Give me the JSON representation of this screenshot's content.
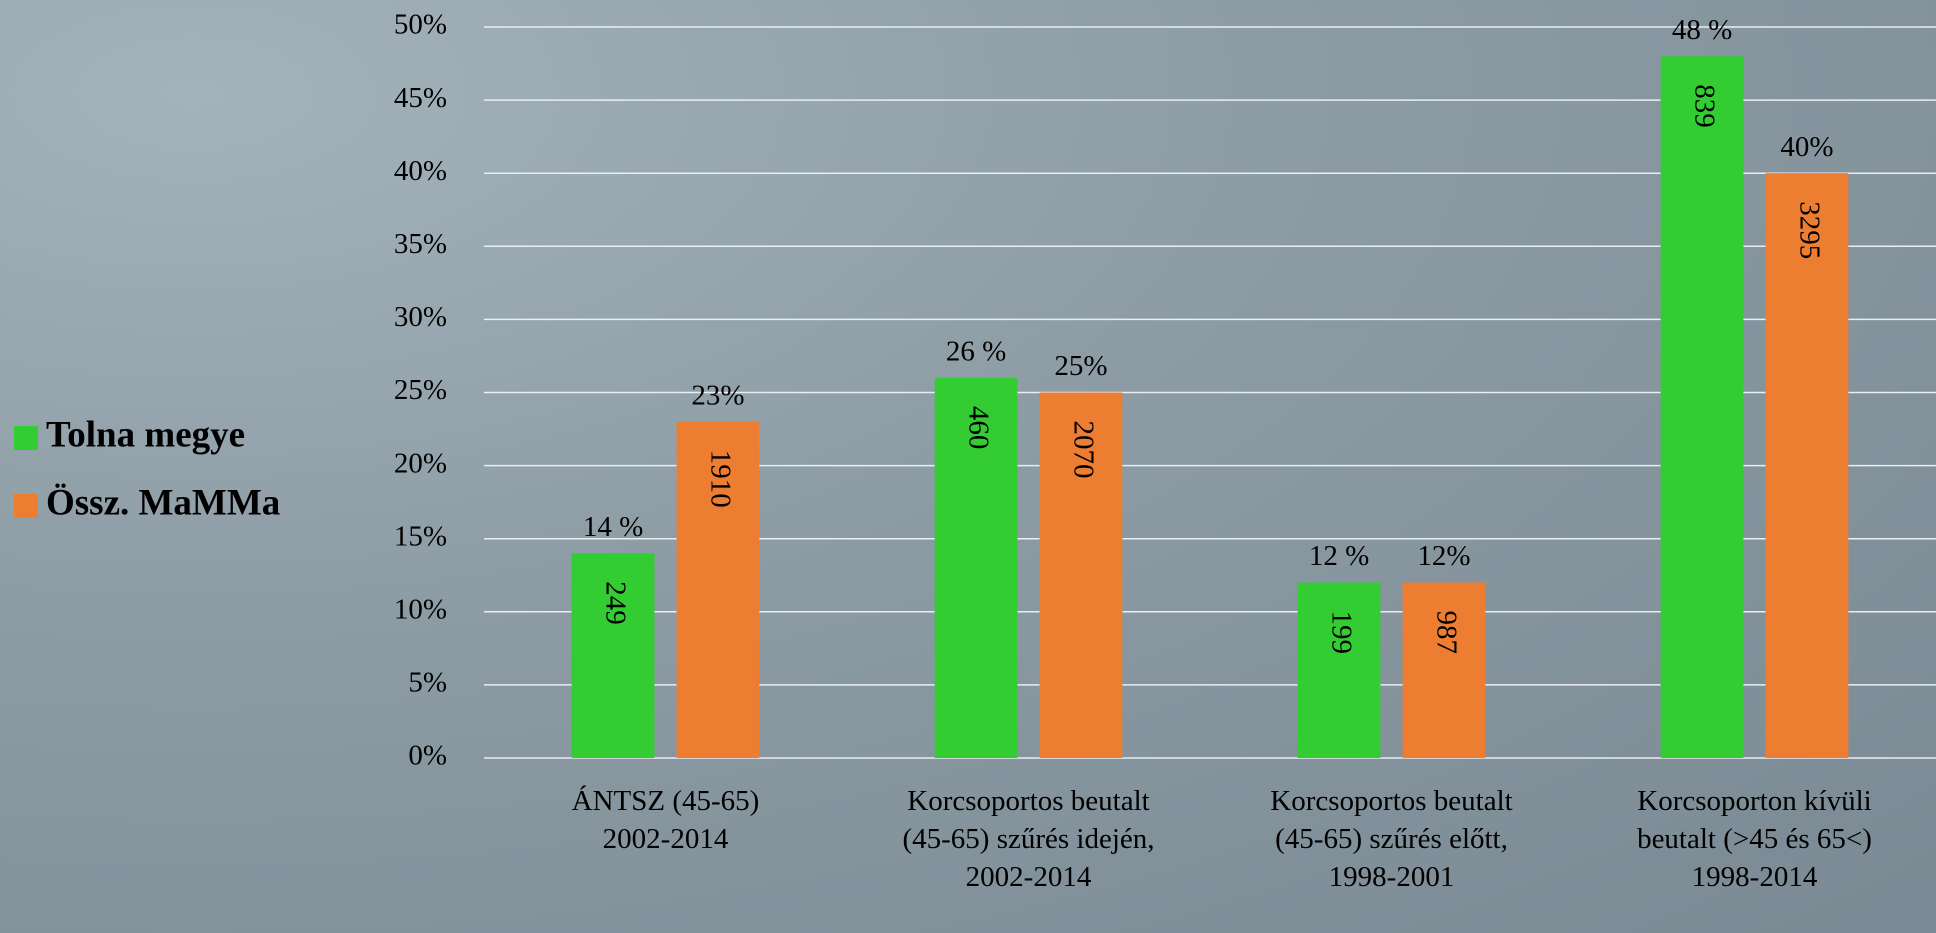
{
  "chart_data": {
    "type": "bar",
    "categories": [
      "ÁNTSZ (45-65)\n2002-2014",
      "Korcsoportos beutalt\n(45-65) szűrés idején,\n2002-2014",
      "Korcsoportos beutalt\n(45-65) szűrés előtt,\n1998-2001",
      "Korcsoporton kívüli\nbeutalt (>45 és 65<)\n1998-2014"
    ],
    "series": [
      {
        "name": "Tolna megye",
        "color": "#33cc33",
        "values": [
          14,
          26,
          12,
          48
        ],
        "value_labels": [
          "14 %",
          "26 %",
          "12 %",
          "48 %"
        ],
        "counts": [
          249,
          460,
          199,
          839
        ]
      },
      {
        "name": "Össz. MaMMa",
        "color": "#ed7d31",
        "values": [
          23,
          25,
          12,
          40
        ],
        "value_labels": [
          "23%",
          "25%",
          "12%",
          "40%"
        ],
        "counts": [
          1910,
          2070,
          987,
          3295
        ]
      }
    ],
    "ylim": [
      0,
      50
    ],
    "yticks": [
      {
        "value": 0,
        "label": "0%"
      },
      {
        "value": 5,
        "label": "5%"
      },
      {
        "value": 10,
        "label": "10%"
      },
      {
        "value": 15,
        "label": "15%"
      },
      {
        "value": 20,
        "label": "20%"
      },
      {
        "value": 25,
        "label": "25%"
      },
      {
        "value": 30,
        "label": "30%"
      },
      {
        "value": 35,
        "label": "35%"
      },
      {
        "value": 40,
        "label": "40%"
      },
      {
        "value": 45,
        "label": "45%"
      },
      {
        "value": 50,
        "label": "50%"
      }
    ],
    "grid": true,
    "legend": "left"
  }
}
